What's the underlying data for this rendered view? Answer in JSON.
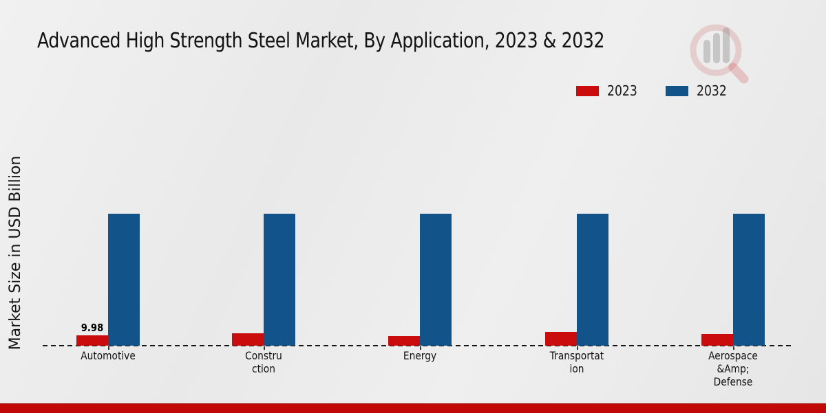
{
  "title": "Advanced High Strength Steel Market, By Application, 2023 & 2032",
  "ylabel": "Market Size in USD Billion",
  "colors": {
    "series_2023": "#cb0c0c",
    "series_2032": "#12538a",
    "footer_band": "#c20707",
    "baseline": "#161616",
    "text": "#111111"
  },
  "watermark_icon": "magnifier-bar-chart-logo",
  "chart_data": {
    "type": "bar",
    "title": "Advanced High Strength Steel Market, By Application, 2023 & 2032",
    "xlabel": "",
    "ylabel": "Market Size in USD Billion",
    "categories": [
      "Automotive",
      "Construction",
      "Energy",
      "Transportation",
      "Aerospace &Amp; Defense"
    ],
    "category_label_lines": [
      [
        "Automotive"
      ],
      [
        "Constru",
        "ction"
      ],
      [
        "Energy"
      ],
      [
        "Transportat",
        "ion"
      ],
      [
        "Aerospace",
        "&Amp;",
        "Defense"
      ]
    ],
    "series": [
      {
        "name": "2023",
        "color": "#cb0c0c",
        "values": [
          9.98,
          11.9,
          9.3,
          12.6,
          11.3
        ]
      },
      {
        "name": "2032",
        "color": "#12538a",
        "values": [
          124,
          124,
          124,
          124,
          124
        ]
      }
    ],
    "bar_value_labels": [
      {
        "series_index": 0,
        "category_index": 0,
        "text": "9.98"
      }
    ],
    "ylim": [
      0,
      130
    ],
    "grid": false,
    "legend_position": "top-right",
    "baseline_style": "dashed"
  }
}
